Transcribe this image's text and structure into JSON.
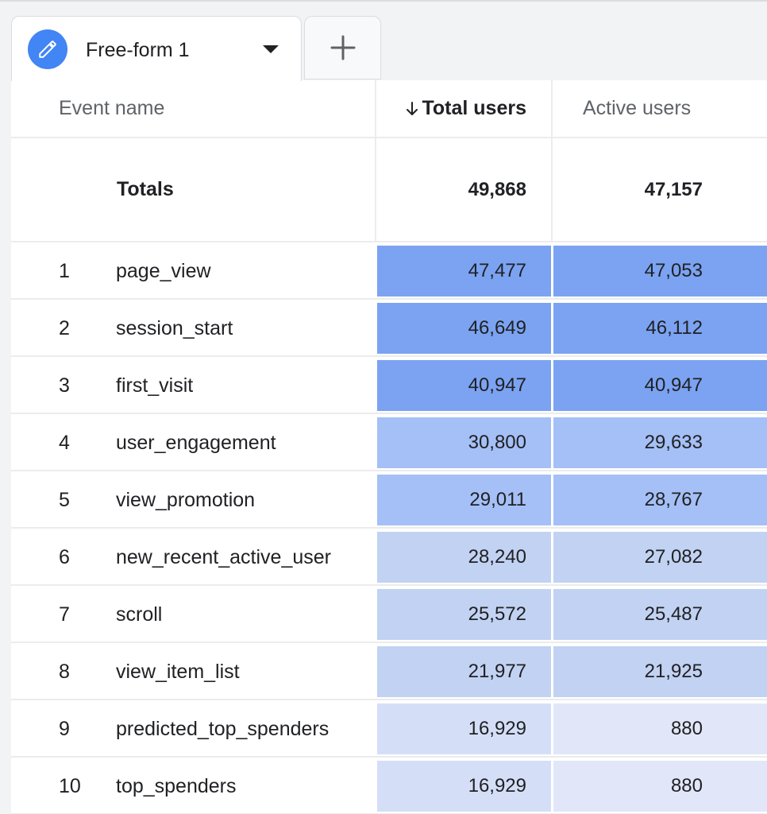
{
  "tabs": {
    "active_label": "Free-form 1",
    "icon": "pencil-icon",
    "add_icon": "plus-icon"
  },
  "table": {
    "columns": {
      "event_name": "Event name",
      "total_users": "Total users",
      "active_users": "Active users"
    },
    "sort_icon": "arrow-down-icon",
    "totals": {
      "label": "Totals",
      "total_users": "49,868",
      "active_users": "47,157"
    },
    "rows": [
      {
        "index": "1",
        "event": "page_view",
        "total_users": "47,477",
        "active_users": "47,053"
      },
      {
        "index": "2",
        "event": "session_start",
        "total_users": "46,649",
        "active_users": "46,112"
      },
      {
        "index": "3",
        "event": "first_visit",
        "total_users": "40,947",
        "active_users": "40,947"
      },
      {
        "index": "4",
        "event": "user_engagement",
        "total_users": "30,800",
        "active_users": "29,633"
      },
      {
        "index": "5",
        "event": "view_promotion",
        "total_users": "29,011",
        "active_users": "28,767"
      },
      {
        "index": "6",
        "event": "new_recent_active_user",
        "total_users": "28,240",
        "active_users": "27,082"
      },
      {
        "index": "7",
        "event": "scroll",
        "total_users": "25,572",
        "active_users": "25,487"
      },
      {
        "index": "8",
        "event": "view_item_list",
        "total_users": "21,977",
        "active_users": "21,925"
      },
      {
        "index": "9",
        "event": "predicted_top_spenders",
        "total_users": "16,929",
        "active_users": "880"
      },
      {
        "index": "10",
        "event": "top_spenders",
        "total_users": "16,929",
        "active_users": "880"
      }
    ]
  },
  "colors": {
    "heat_level_1": "#7ba3f2",
    "heat_level_2": "#a5c0f6",
    "heat_level_3": "#c2d2f2",
    "heat_level_4": "#d4dff7",
    "heat_level_5": "#e1e7f8",
    "accent": "#4285f4"
  }
}
